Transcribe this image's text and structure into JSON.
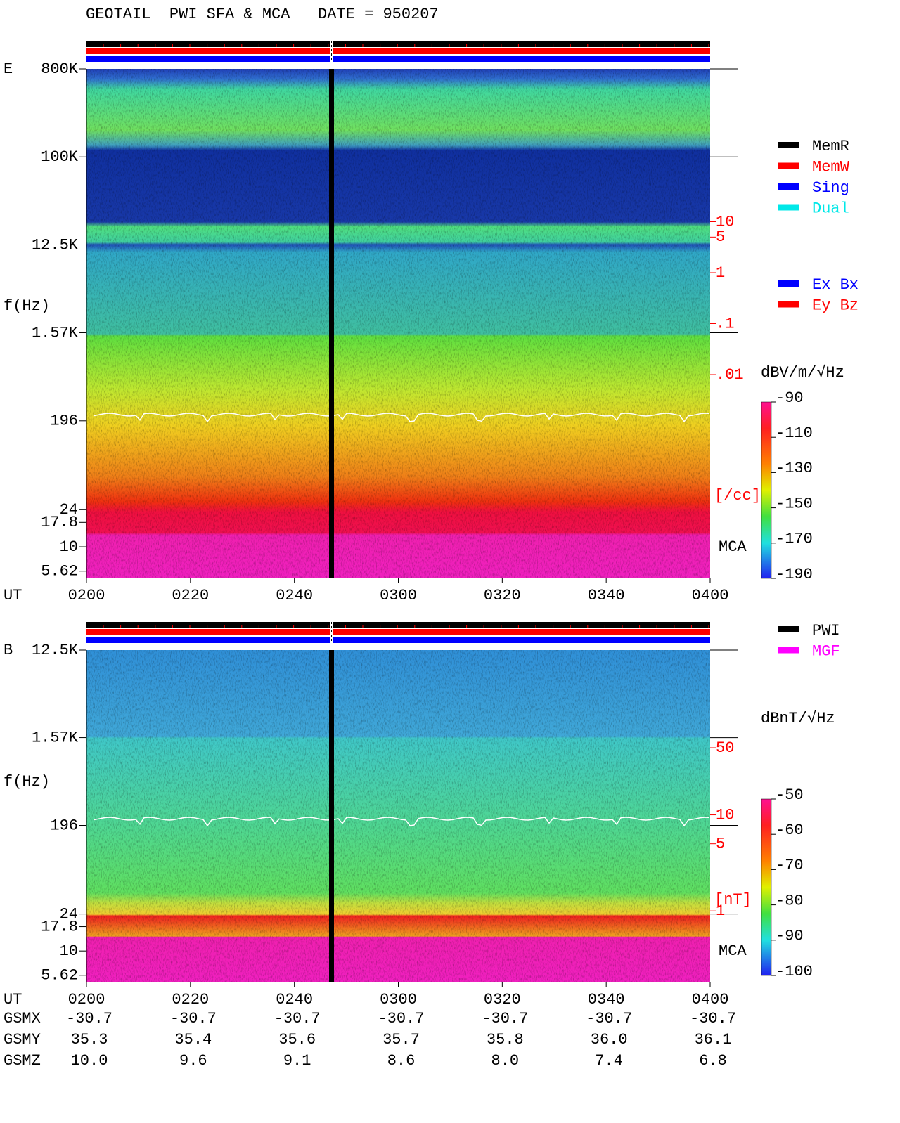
{
  "title": "GEOTAIL  PWI SFA & MCA   DATE = 950207",
  "chart_data": [
    {
      "type": "spectrogram",
      "panel_label": "E",
      "ylabel": "f(Hz)",
      "xlabel": "UT",
      "annotation": "MCA",
      "log_y": true,
      "ylim": [
        4.74,
        800000
      ],
      "yticks": [
        {
          "value": 800000,
          "label": "800K"
        },
        {
          "value": 100000,
          "label": "100K"
        },
        {
          "value": 12500,
          "label": "12.5K"
        },
        {
          "value": 1570,
          "label": "1.57K"
        },
        196,
        24,
        17.8,
        10,
        5.62
      ],
      "log_y2": true,
      "y2lim": [
        1e-06,
        10000
      ],
      "y2ticks": [
        10,
        5,
        1,
        {
          "value": 0.1,
          "label": ".1"
        },
        {
          "value": 0.01,
          "label": ".01"
        }
      ],
      "y2label": "[/cc]",
      "xlim": [
        120,
        240
      ],
      "xticks": [
        {
          "value": 120,
          "label": "0200"
        },
        {
          "value": 140,
          "label": "0220"
        },
        {
          "value": 160,
          "label": "0240"
        },
        {
          "value": 180,
          "label": "0300"
        },
        {
          "value": 200,
          "label": "0320"
        },
        {
          "value": 220,
          "label": "0340"
        },
        {
          "value": 240,
          "label": "0400"
        }
      ],
      "colorbar": {
        "label": "dBV/m/√Hz",
        "lim": [
          -190,
          -90
        ],
        "ticks": [
          -90,
          -110,
          -130,
          -150,
          -170,
          -190
        ]
      },
      "legends": [
        {
          "items": [
            {
              "name": "MemR",
              "color": "#000000"
            },
            {
              "name": "MemW",
              "color": "#ff0000"
            },
            {
              "name": "Sing",
              "color": "#0000ff"
            },
            {
              "name": "Dual",
              "color": "#00e8e8"
            }
          ]
        },
        {
          "items": [
            {
              "name": "Ex Bx",
              "color": "#0000ff"
            },
            {
              "name": "Ey Bz",
              "color": "#ff0000"
            }
          ]
        }
      ]
    },
    {
      "type": "spectrogram",
      "panel_label": "B",
      "ylabel": "f(Hz)",
      "xlabel": "UT",
      "annotation": "MCA",
      "log_y": true,
      "ylim": [
        4.74,
        12500
      ],
      "yticks": [
        {
          "value": 12500,
          "label": "12.5K"
        },
        {
          "value": 1570,
          "label": "1.57K"
        },
        196,
        24,
        17.8,
        10,
        5.62
      ],
      "log_y2": true,
      "y2lim": [
        0.18,
        520
      ],
      "y2ticks": [
        50,
        10,
        5,
        1
      ],
      "y2label": "[nT]",
      "xlim": [
        120,
        240
      ],
      "xticks": [
        {
          "value": 120,
          "label": "0200"
        },
        {
          "value": 140,
          "label": "0220"
        },
        {
          "value": 160,
          "label": "0240"
        },
        {
          "value": 180,
          "label": "0300"
        },
        {
          "value": 200,
          "label": "0320"
        },
        {
          "value": 220,
          "label": "0340"
        },
        {
          "value": 240,
          "label": "0400"
        }
      ],
      "colorbar": {
        "label": "dBnT/√Hz",
        "lim": [
          -100,
          -50
        ],
        "ticks": [
          -50,
          -60,
          -70,
          -80,
          -90,
          -100
        ]
      },
      "legends": [
        {
          "items": [
            {
              "name": "PWI",
              "color": "#000000"
            },
            {
              "name": "MGF",
              "color": "#ff00ff"
            }
          ]
        }
      ]
    }
  ],
  "orbit": {
    "row_labels": [
      "GSMX",
      "GSMY",
      "GSMZ"
    ],
    "rows": [
      [
        "-30.7",
        "-30.7",
        "-30.7",
        "-30.7",
        "-30.7",
        "-30.7",
        "-30.7"
      ],
      [
        "35.3",
        "35.4",
        "35.6",
        "35.7",
        "35.8",
        "36.0",
        "36.1"
      ],
      [
        "10.0",
        "9.6",
        "9.1",
        "8.6",
        "8.0",
        "7.4",
        "6.8"
      ]
    ]
  }
}
